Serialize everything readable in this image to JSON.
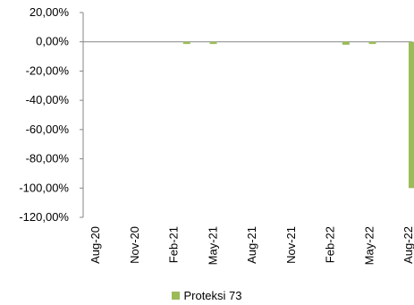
{
  "chart_data": {
    "type": "bar",
    "series": [
      {
        "name": "Proteksi 73",
        "color": "#9BBB59",
        "points": [
          {
            "x": "2021-03",
            "y": -1.5
          },
          {
            "x": "2021-05",
            "y": -1.5
          },
          {
            "x": "2022-03",
            "y": -2.0
          },
          {
            "x": "2022-05",
            "y": -1.5
          },
          {
            "x": "2022-08",
            "y": -100.0
          }
        ]
      }
    ],
    "x_tick_labels": [
      "Aug-20",
      "Nov-20",
      "Feb-21",
      "May-21",
      "Aug-21",
      "Nov-21",
      "Feb-22",
      "May-22",
      "Aug-22"
    ],
    "x_range": [
      "2020-08",
      "2022-08"
    ],
    "y_tick_labels": [
      "20,00%",
      "0,00%",
      "-20,00%",
      "-40,00%",
      "-60,00%",
      "-80,00%",
      "-100,00%",
      "-120,00%"
    ],
    "ylim": [
      -120,
      20
    ],
    "y_unit": "%",
    "grid": false,
    "legend_position": "bottom"
  },
  "legend": {
    "label": "Proteksi 73",
    "color": "#9BBB59"
  }
}
